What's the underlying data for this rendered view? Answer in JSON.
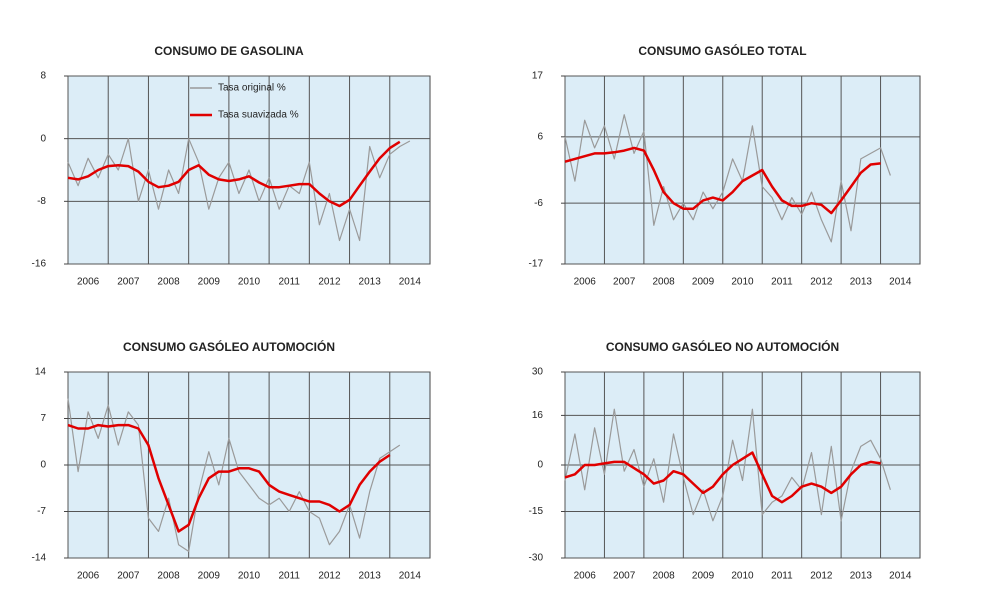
{
  "chart_data": [
    {
      "type": "line",
      "title": "CONSUMO DE GASOLINA",
      "x": [
        2006,
        2006.25,
        2006.5,
        2006.75,
        2007,
        2007.25,
        2007.5,
        2007.75,
        2008,
        2008.25,
        2008.5,
        2008.75,
        2009,
        2009.25,
        2009.5,
        2009.75,
        2010,
        2010.25,
        2010.5,
        2010.75,
        2011,
        2011.25,
        2011.5,
        2011.75,
        2012,
        2012.25,
        2012.5,
        2012.75,
        2013,
        2013.25,
        2013.5,
        2013.75,
        2014,
        2014.25,
        2014.5
      ],
      "series": [
        {
          "name": "Tasa original %",
          "color": "#9a9a9a",
          "values": [
            -3,
            -6,
            -2.5,
            -5,
            -2,
            -4,
            0,
            -8,
            -4,
            -9,
            -4,
            -7,
            0,
            -3,
            -9,
            -5,
            -3,
            -7,
            -4,
            -8,
            -5,
            -9,
            -6,
            -7,
            -3,
            -11,
            -7,
            -13,
            -9,
            -13,
            -1,
            -5,
            -2,
            -1,
            -0.3
          ]
        },
        {
          "name": "Tasa suavizada %",
          "color": "#e00000",
          "values": [
            -5,
            -5.2,
            -4.8,
            -4,
            -3.5,
            -3.4,
            -3.5,
            -4.2,
            -5.5,
            -6.2,
            -6,
            -5.5,
            -4,
            -3.4,
            -4.6,
            -5.2,
            -5.4,
            -5.2,
            -4.8,
            -5.6,
            -6.2,
            -6.2,
            -6,
            -5.8,
            -5.8,
            -7,
            -8,
            -8.6,
            -7.8,
            -6,
            -4.2,
            -2.5,
            -1.2,
            -0.4,
            null
          ]
        }
      ],
      "xlim": [
        2006,
        2015
      ],
      "xticks": [
        2006,
        2007,
        2008,
        2009,
        2010,
        2011,
        2012,
        2013,
        2014
      ],
      "ylim": [
        -16,
        8
      ],
      "yticks": [
        -16,
        -8,
        0,
        8
      ],
      "grid": true,
      "legend": "top-center",
      "background": "#dcedf7"
    },
    {
      "type": "line",
      "title": "CONSUMO GASÓLEO TOTAL",
      "x": [
        2006,
        2006.25,
        2006.5,
        2006.75,
        2007,
        2007.25,
        2007.5,
        2007.75,
        2008,
        2008.25,
        2008.5,
        2008.75,
        2009,
        2009.25,
        2009.5,
        2009.75,
        2010,
        2010.25,
        2010.5,
        2010.75,
        2011,
        2011.25,
        2011.5,
        2011.75,
        2012,
        2012.25,
        2012.5,
        2012.75,
        2013,
        2013.25,
        2013.5,
        2013.75,
        2014,
        2014.25,
        2014.5
      ],
      "series": [
        {
          "color": "#9a9a9a",
          "values": [
            6,
            -2,
            9,
            4,
            8,
            2,
            10,
            3,
            7,
            -10,
            -3,
            -9,
            -6,
            -9,
            -4,
            -7,
            -4,
            2,
            -2,
            8,
            -3,
            -5,
            -9,
            -5,
            -8,
            -4,
            -9,
            -13,
            -2,
            -11,
            2,
            3,
            4,
            -1,
            null
          ]
        },
        {
          "color": "#e00000",
          "values": [
            1.5,
            2,
            2.5,
            3,
            3,
            3.2,
            3.5,
            4,
            3.5,
            0,
            -4,
            -6,
            -7,
            -7,
            -5.5,
            -5,
            -5.5,
            -4,
            -2,
            -1,
            0,
            -3,
            -5.5,
            -6.5,
            -6.5,
            -6,
            -6.3,
            -7.8,
            -5.5,
            -3,
            -0.5,
            1,
            1.2,
            null,
            null
          ]
        }
      ],
      "xlim": [
        2006,
        2015
      ],
      "xticks": [
        2006,
        2007,
        2008,
        2009,
        2010,
        2011,
        2012,
        2013,
        2014
      ],
      "ylim": [
        -17,
        17
      ],
      "yticks": [
        -17,
        -6,
        6,
        17
      ],
      "grid": true,
      "background": "#dcedf7"
    },
    {
      "type": "line",
      "title": "CONSUMO GASÓLEO AUTOMOCIÓN",
      "x": [
        2006,
        2006.25,
        2006.5,
        2006.75,
        2007,
        2007.25,
        2007.5,
        2007.75,
        2008,
        2008.25,
        2008.5,
        2008.75,
        2009,
        2009.25,
        2009.5,
        2009.75,
        2010,
        2010.25,
        2010.5,
        2010.75,
        2011,
        2011.25,
        2011.5,
        2011.75,
        2012,
        2012.25,
        2012.5,
        2012.75,
        2013,
        2013.25,
        2013.5,
        2013.75,
        2014,
        2014.25,
        2014.5
      ],
      "series": [
        {
          "color": "#9a9a9a",
          "values": [
            10,
            -1,
            8,
            4,
            9,
            3,
            8,
            6,
            -8,
            -10,
            -5,
            -12,
            -13,
            -4,
            2,
            -3,
            4,
            -1,
            -3,
            -5,
            -6,
            -5,
            -7,
            -4,
            -7,
            -8,
            -12,
            -10,
            -6,
            -11,
            -4,
            1,
            2,
            3,
            null
          ]
        },
        {
          "color": "#e00000",
          "values": [
            6,
            5.5,
            5.5,
            6,
            5.8,
            6,
            6,
            5.5,
            3,
            -2,
            -6,
            -10,
            -9,
            -5,
            -2,
            -1,
            -1,
            -0.5,
            -0.5,
            -1,
            -3,
            -4,
            -4.5,
            -5,
            -5.5,
            -5.5,
            -6,
            -7,
            -6,
            -3,
            -1,
            0.5,
            1.5,
            null,
            null
          ]
        }
      ],
      "xlim": [
        2006,
        2015
      ],
      "xticks": [
        2006,
        2007,
        2008,
        2009,
        2010,
        2011,
        2012,
        2013,
        2014
      ],
      "ylim": [
        -14,
        14
      ],
      "yticks": [
        -14,
        -7,
        0,
        7,
        14
      ],
      "grid": true,
      "background": "#dcedf7"
    },
    {
      "type": "line",
      "title": "CONSUMO GASÓLEO NO AUTOMOCIÓN",
      "x": [
        2006,
        2006.25,
        2006.5,
        2006.75,
        2007,
        2007.25,
        2007.5,
        2007.75,
        2008,
        2008.25,
        2008.5,
        2008.75,
        2009,
        2009.25,
        2009.5,
        2009.75,
        2010,
        2010.25,
        2010.5,
        2010.75,
        2011,
        2011.25,
        2011.5,
        2011.75,
        2012,
        2012.25,
        2012.5,
        2012.75,
        2013,
        2013.25,
        2013.5,
        2013.75,
        2014,
        2014.25,
        2014.5
      ],
      "series": [
        {
          "color": "#9a9a9a",
          "values": [
            -5,
            10,
            -8,
            12,
            -3,
            18,
            -2,
            5,
            -7,
            2,
            -12,
            10,
            -4,
            -16,
            -8,
            -18,
            -10,
            8,
            -5,
            18,
            -16,
            -12,
            -10,
            -4,
            -8,
            4,
            -16,
            6,
            -18,
            -2,
            6,
            8,
            2,
            -8,
            null
          ]
        },
        {
          "color": "#e00000",
          "values": [
            -4,
            -3,
            0,
            0,
            0.5,
            1,
            1,
            -1,
            -3,
            -6,
            -5,
            -2,
            -3,
            -6,
            -9,
            -7,
            -3,
            0,
            2,
            4,
            -3,
            -10,
            -12,
            -10,
            -7,
            -6,
            -7,
            -9,
            -7,
            -3,
            0,
            1,
            0.5,
            null,
            null
          ]
        }
      ],
      "xlim": [
        2006,
        2015
      ],
      "xticks": [
        2006,
        2007,
        2008,
        2009,
        2010,
        2011,
        2012,
        2013,
        2014
      ],
      "ylim": [
        -30,
        30
      ],
      "yticks": [
        -30,
        -15,
        0,
        16,
        30
      ],
      "grid": true,
      "background": "#dcedf7"
    }
  ]
}
